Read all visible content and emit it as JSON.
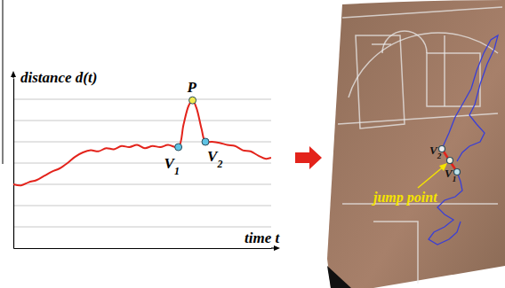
{
  "chart_data": {
    "type": "line",
    "x_label": "time t",
    "y_label": "distance d(t)",
    "x": [
      0,
      3,
      6,
      9,
      12,
      15,
      18,
      21,
      24,
      27,
      30,
      33,
      36,
      39,
      42,
      45,
      48,
      51,
      54,
      57,
      60,
      64,
      66,
      68,
      69.5,
      71,
      73,
      74.5,
      77,
      80,
      83,
      86,
      89,
      92,
      95,
      98,
      100
    ],
    "values": [
      3.0,
      2.95,
      3.1,
      3.2,
      3.4,
      3.6,
      3.75,
      4.0,
      4.3,
      4.5,
      4.6,
      4.55,
      4.7,
      4.65,
      4.8,
      4.75,
      4.85,
      4.7,
      4.8,
      4.75,
      4.85,
      4.75,
      5.8,
      6.7,
      6.95,
      6.6,
      5.6,
      5.0,
      5.0,
      4.95,
      4.85,
      4.8,
      4.6,
      4.55,
      4.35,
      4.2,
      4.25
    ],
    "color": "#e3231b",
    "xlim": [
      0,
      100
    ],
    "ylim": [
      0,
      8
    ],
    "yticks": [
      1,
      2,
      3,
      4,
      5,
      6,
      7
    ],
    "grid": true,
    "tick_labels": false,
    "annotations": [
      {
        "text": "P",
        "x": 69.5,
        "y": 6.95,
        "color": "#f2e94e"
      },
      {
        "text": "V1",
        "x": 64,
        "y": 4.75,
        "color": "#5fc3e4"
      },
      {
        "text": "V2",
        "x": 74.5,
        "y": 5.0,
        "color": "#5fc3e4"
      }
    ]
  },
  "photo": {
    "labels": [
      {
        "text": "V2"
      },
      {
        "text": "V1"
      }
    ],
    "annotation": "jump point"
  }
}
